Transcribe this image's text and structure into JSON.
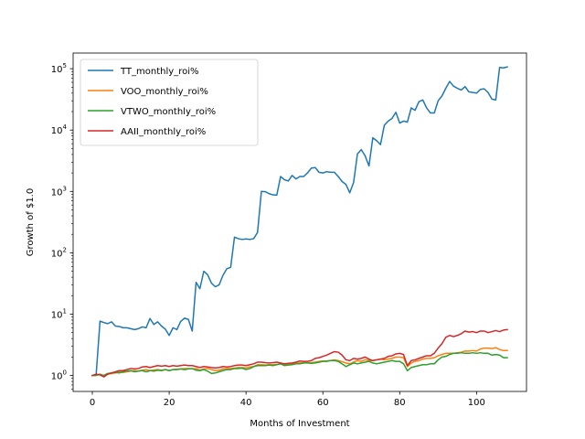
{
  "chart_data": {
    "type": "line",
    "xlabel": "Months of Investment",
    "ylabel": "Growth of $1.0",
    "yscale": "log",
    "xlim": [
      -5,
      113
    ],
    "ylim": [
      0.55,
      180000
    ],
    "xticks": [
      0,
      20,
      40,
      60,
      80,
      100
    ],
    "yticks": [
      {
        "value": 1,
        "base": "10",
        "exp": "0"
      },
      {
        "value": 10,
        "base": "10",
        "exp": "1"
      },
      {
        "value": 100,
        "base": "10",
        "exp": "2"
      },
      {
        "value": 1000,
        "base": "10",
        "exp": "3"
      },
      {
        "value": 10000,
        "base": "10",
        "exp": "4"
      },
      {
        "value": 100000,
        "base": "10",
        "exp": "5"
      }
    ],
    "grid": false,
    "legend_position": "top-left",
    "series": [
      {
        "name": "TT_monthly_roi%",
        "color": "#1f77b4",
        "x": [
          0,
          1,
          2,
          3,
          4,
          5,
          6,
          7,
          8,
          9,
          10,
          11,
          12,
          13,
          14,
          15,
          16,
          17,
          18,
          19,
          20,
          21,
          22,
          23,
          24,
          25,
          26,
          27,
          28,
          29,
          30,
          31,
          32,
          33,
          34,
          35,
          36,
          37,
          38,
          39,
          40,
          41,
          42,
          43,
          44,
          45,
          46,
          47,
          48,
          49,
          50,
          51,
          52,
          53,
          54,
          55,
          56,
          57,
          58,
          59,
          60,
          61,
          62,
          63,
          64,
          65,
          66,
          67,
          68,
          69,
          70,
          71,
          72,
          73,
          74,
          75,
          76,
          77,
          78,
          79,
          80,
          81,
          82,
          83,
          84,
          85,
          86,
          87,
          88,
          89,
          90,
          91,
          92,
          93,
          94,
          95,
          96,
          97,
          98,
          99,
          100,
          101,
          102,
          103,
          104,
          105,
          106,
          107,
          108
        ],
        "values": [
          1.0,
          1.05,
          7.7,
          7.3,
          7.0,
          7.5,
          6.4,
          6.3,
          6.0,
          6.0,
          5.8,
          5.6,
          5.8,
          6.2,
          6.0,
          8.5,
          6.8,
          7.5,
          6.4,
          5.7,
          4.5,
          6.0,
          5.6,
          7.6,
          8.6,
          8.2,
          5.3,
          33,
          26,
          50,
          44,
          32,
          28,
          30,
          43,
          55,
          58,
          180,
          170,
          165,
          168,
          165,
          170,
          215,
          1000,
          990,
          920,
          880,
          870,
          1750,
          1550,
          1480,
          1820,
          1600,
          1750,
          1750,
          2000,
          2400,
          2450,
          2050,
          2000,
          2100,
          2050,
          2050,
          1750,
          1450,
          1300,
          950,
          1400,
          4100,
          4800,
          3800,
          2600,
          7500,
          6700,
          5800,
          12000,
          14000,
          15500,
          19500,
          13000,
          14000,
          13500,
          23000,
          21000,
          29000,
          31000,
          23000,
          19000,
          19000,
          30000,
          36000,
          48000,
          62000,
          52000,
          48000,
          45000,
          51000,
          42000,
          41000,
          40000,
          46000,
          47000,
          41000,
          32000,
          31000,
          105000,
          103000,
          107000
        ]
      },
      {
        "name": "VOO_monthly_roi%",
        "color": "#ff7f0e",
        "x": [
          0,
          1,
          2,
          3,
          4,
          5,
          6,
          7,
          8,
          9,
          10,
          11,
          12,
          13,
          14,
          15,
          16,
          17,
          18,
          19,
          20,
          21,
          22,
          23,
          24,
          25,
          26,
          27,
          28,
          29,
          30,
          31,
          32,
          33,
          34,
          35,
          36,
          37,
          38,
          39,
          40,
          41,
          42,
          43,
          44,
          45,
          46,
          47,
          48,
          49,
          50,
          51,
          52,
          53,
          54,
          55,
          56,
          57,
          58,
          59,
          60,
          61,
          62,
          63,
          64,
          65,
          66,
          67,
          68,
          69,
          70,
          71,
          72,
          73,
          74,
          75,
          76,
          77,
          78,
          79,
          80,
          81,
          82,
          83,
          84,
          85,
          86,
          87,
          88,
          89,
          90,
          91,
          92,
          93,
          94,
          95,
          96,
          97,
          98,
          99,
          100,
          101,
          102,
          103,
          104,
          105,
          106,
          107,
          108
        ],
        "values": [
          1.0,
          1.02,
          1.05,
          0.98,
          1.05,
          1.08,
          1.1,
          1.15,
          1.12,
          1.15,
          1.18,
          1.2,
          1.18,
          1.22,
          1.25,
          1.2,
          1.23,
          1.25,
          1.22,
          1.25,
          1.2,
          1.25,
          1.27,
          1.28,
          1.3,
          1.3,
          1.28,
          1.3,
          1.22,
          1.28,
          1.3,
          1.25,
          1.2,
          1.22,
          1.28,
          1.3,
          1.3,
          1.32,
          1.35,
          1.35,
          1.33,
          1.38,
          1.4,
          1.5,
          1.5,
          1.48,
          1.5,
          1.5,
          1.52,
          1.55,
          1.5,
          1.5,
          1.55,
          1.58,
          1.6,
          1.62,
          1.6,
          1.62,
          1.65,
          1.7,
          1.72,
          1.73,
          1.75,
          1.8,
          1.75,
          1.68,
          1.6,
          1.55,
          1.65,
          1.75,
          1.7,
          1.8,
          1.75,
          1.75,
          1.8,
          1.85,
          1.8,
          1.85,
          1.9,
          2.0,
          2.0,
          1.95,
          1.4,
          1.6,
          1.7,
          1.75,
          1.85,
          1.9,
          1.9,
          1.95,
          2.1,
          2.2,
          2.3,
          2.3,
          2.3,
          2.35,
          2.4,
          2.5,
          2.5,
          2.55,
          2.5,
          2.7,
          2.8,
          2.8,
          2.75,
          2.85,
          2.65,
          2.55,
          2.55
        ]
      },
      {
        "name": "VTWO_monthly_roi%",
        "color": "#2ca02c",
        "x": [
          0,
          1,
          2,
          3,
          4,
          5,
          6,
          7,
          8,
          9,
          10,
          11,
          12,
          13,
          14,
          15,
          16,
          17,
          18,
          19,
          20,
          21,
          22,
          23,
          24,
          25,
          26,
          27,
          28,
          29,
          30,
          31,
          32,
          33,
          34,
          35,
          36,
          37,
          38,
          39,
          40,
          41,
          42,
          43,
          44,
          45,
          46,
          47,
          48,
          49,
          50,
          51,
          52,
          53,
          54,
          55,
          56,
          57,
          58,
          59,
          60,
          61,
          62,
          63,
          64,
          65,
          66,
          67,
          68,
          69,
          70,
          71,
          72,
          73,
          74,
          75,
          76,
          77,
          78,
          79,
          80,
          81,
          82,
          83,
          84,
          85,
          86,
          87,
          88,
          89,
          90,
          91,
          92,
          93,
          94,
          95,
          96,
          97,
          98,
          99,
          100,
          101,
          102,
          103,
          104,
          105,
          106,
          107,
          108
        ],
        "values": [
          1.0,
          1.0,
          1.05,
          1.0,
          1.08,
          1.1,
          1.12,
          1.1,
          1.15,
          1.18,
          1.2,
          1.15,
          1.18,
          1.2,
          1.15,
          1.2,
          1.18,
          1.22,
          1.2,
          1.25,
          1.2,
          1.25,
          1.25,
          1.28,
          1.25,
          1.28,
          1.3,
          1.22,
          1.2,
          1.25,
          1.18,
          1.08,
          1.1,
          1.15,
          1.2,
          1.25,
          1.25,
          1.3,
          1.3,
          1.32,
          1.25,
          1.3,
          1.4,
          1.45,
          1.45,
          1.45,
          1.48,
          1.45,
          1.5,
          1.55,
          1.45,
          1.48,
          1.5,
          1.55,
          1.55,
          1.6,
          1.6,
          1.58,
          1.6,
          1.65,
          1.7,
          1.7,
          1.75,
          1.75,
          1.7,
          1.55,
          1.4,
          1.5,
          1.6,
          1.55,
          1.6,
          1.65,
          1.7,
          1.6,
          1.55,
          1.6,
          1.65,
          1.7,
          1.75,
          1.7,
          1.7,
          1.55,
          1.2,
          1.35,
          1.4,
          1.45,
          1.5,
          1.5,
          1.55,
          1.55,
          1.8,
          2.0,
          2.05,
          2.2,
          2.3,
          2.3,
          2.35,
          2.3,
          2.3,
          2.35,
          2.3,
          2.35,
          2.3,
          2.3,
          2.15,
          2.2,
          2.15,
          1.95,
          1.95
        ]
      },
      {
        "name": "AAII_monthly_roi%",
        "color": "#d62728",
        "x": [
          0,
          1,
          2,
          3,
          4,
          5,
          6,
          7,
          8,
          9,
          10,
          11,
          12,
          13,
          14,
          15,
          16,
          17,
          18,
          19,
          20,
          21,
          22,
          23,
          24,
          25,
          26,
          27,
          28,
          29,
          30,
          31,
          32,
          33,
          34,
          35,
          36,
          37,
          38,
          39,
          40,
          41,
          42,
          43,
          44,
          45,
          46,
          47,
          48,
          49,
          50,
          51,
          52,
          53,
          54,
          55,
          56,
          57,
          58,
          59,
          60,
          61,
          62,
          63,
          64,
          65,
          66,
          67,
          68,
          69,
          70,
          71,
          72,
          73,
          74,
          75,
          76,
          77,
          78,
          79,
          80,
          81,
          82,
          83,
          84,
          85,
          86,
          87,
          88,
          89,
          90,
          91,
          92,
          93,
          94,
          95,
          96,
          97,
          98,
          99,
          100,
          101,
          102,
          103,
          104,
          105,
          106,
          107,
          108
        ],
        "values": [
          1.0,
          1.05,
          1.02,
          0.95,
          1.05,
          1.1,
          1.15,
          1.2,
          1.2,
          1.25,
          1.3,
          1.28,
          1.3,
          1.38,
          1.4,
          1.35,
          1.4,
          1.45,
          1.42,
          1.45,
          1.4,
          1.45,
          1.42,
          1.45,
          1.48,
          1.45,
          1.45,
          1.4,
          1.35,
          1.4,
          1.38,
          1.35,
          1.33,
          1.35,
          1.4,
          1.38,
          1.4,
          1.45,
          1.48,
          1.48,
          1.45,
          1.5,
          1.55,
          1.65,
          1.65,
          1.62,
          1.6,
          1.62,
          1.65,
          1.6,
          1.55,
          1.58,
          1.6,
          1.65,
          1.72,
          1.7,
          1.7,
          1.75,
          1.9,
          1.95,
          2.05,
          2.15,
          2.3,
          2.45,
          2.4,
          2.15,
          1.8,
          1.75,
          1.9,
          1.85,
          1.9,
          2.0,
          1.85,
          1.75,
          1.8,
          1.85,
          1.9,
          2.05,
          2.1,
          2.25,
          2.3,
          2.2,
          1.45,
          1.75,
          1.8,
          1.9,
          2.0,
          2.1,
          2.1,
          2.3,
          2.8,
          3.3,
          4.2,
          4.5,
          4.3,
          4.5,
          4.8,
          5.3,
          5.1,
          5.2,
          5.0,
          5.3,
          5.3,
          5.0,
          5.2,
          5.4,
          5.2,
          5.5,
          5.6
        ]
      }
    ]
  }
}
